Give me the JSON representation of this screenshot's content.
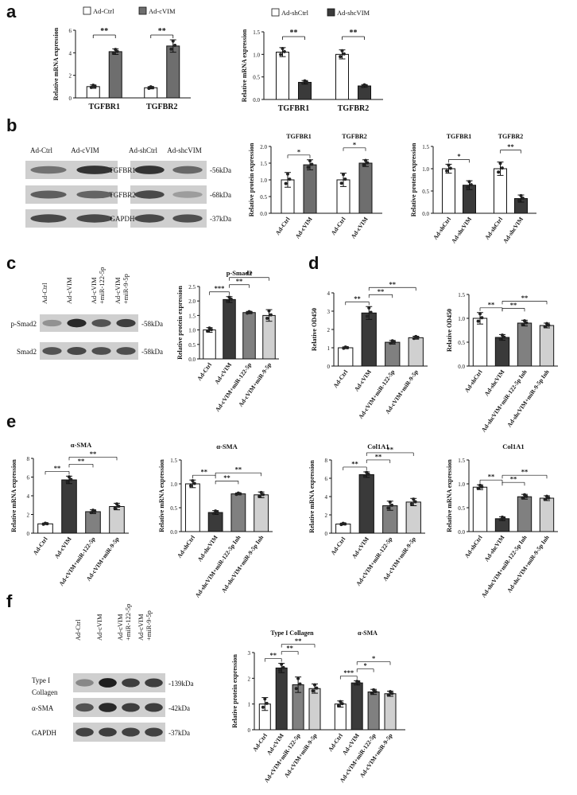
{
  "panels": {
    "a": "a",
    "b": "b",
    "c": "c",
    "d": "d",
    "e": "e",
    "f": "f"
  },
  "blots": {
    "b_left": {
      "lanes": [
        "Ad-Ctrl",
        "Ad-cVIM"
      ],
      "rows": [
        "TGFBR1",
        "TGFBR2",
        "GAPDH"
      ],
      "intensity": [
        [
          0.55,
          0.85
        ],
        [
          0.65,
          0.62
        ],
        [
          0.75,
          0.75
        ]
      ]
    },
    "b_right": {
      "lanes": [
        "Ad-shCtrl",
        "Ad-shcVIM"
      ],
      "rows": [
        "-56kDa",
        "-68kDa",
        "-37kDa"
      ],
      "intensity": [
        [
          0.85,
          0.6
        ],
        [
          0.75,
          0.35
        ],
        [
          0.75,
          0.72
        ]
      ]
    },
    "c": {
      "lanes": [
        "Ad-Ctrl",
        "Ad-cVIM",
        "Ad-cVIM +miR-122-5p",
        "Ad-cVIM +miR-9-5p"
      ],
      "rows": [
        "p-Smad2",
        "Smad2"
      ],
      "sizes": [
        "-58kDa",
        "-58kDa"
      ],
      "intensity": [
        [
          0.4,
          0.9,
          0.7,
          0.8
        ],
        [
          0.7,
          0.75,
          0.72,
          0.72
        ]
      ]
    },
    "f": {
      "lanes": [
        "Ad-Ctrl",
        "Ad-cVIM",
        "Ad-cVIM +miR-122-5p",
        "Ad-cVIM +miR-9-5p"
      ],
      "rows": [
        "Type I Collagen",
        "α-SMA",
        "GAPDH"
      ],
      "sizes": [
        "-139kDa",
        "-42kDa",
        "-37kDa"
      ],
      "intensity": [
        [
          0.45,
          0.95,
          0.8,
          0.8
        ],
        [
          0.7,
          0.9,
          0.8,
          0.8
        ],
        [
          0.78,
          0.8,
          0.78,
          0.78
        ]
      ]
    }
  },
  "chart_data": [
    {
      "id": "a1",
      "type": "bar",
      "ylabel": "Relative mRNA expression",
      "ylim": [
        0,
        6
      ],
      "yticks": [
        0,
        2,
        4,
        6
      ],
      "categories": [
        "TGFBR1",
        "TGFBR2"
      ],
      "series": [
        {
          "name": "Ad-Ctrl",
          "color": "#ffffff",
          "values": [
            1.0,
            0.9
          ],
          "err": [
            0.15,
            0.1
          ]
        },
        {
          "name": "Ad-cVIM",
          "color": "#6e6e6e",
          "values": [
            4.1,
            4.6
          ],
          "err": [
            0.25,
            0.55
          ]
        }
      ],
      "sig": [
        "**",
        "**"
      ],
      "legend": "top"
    },
    {
      "id": "a2",
      "type": "bar",
      "ylabel": "Relative mRNA expression",
      "ylim": [
        0,
        1.5
      ],
      "yticks": [
        0,
        0.5,
        1.0,
        1.5
      ],
      "ytick_labels": [
        "0.0",
        "0.5",
        "1.0",
        "1.5"
      ],
      "categories": [
        "TGFBR1",
        "TGFBR2"
      ],
      "series": [
        {
          "name": "Ad-shCtrl",
          "color": "#ffffff",
          "values": [
            1.05,
            1.0
          ],
          "err": [
            0.1,
            0.1
          ]
        },
        {
          "name": "Ad-shcVIM",
          "color": "#3a3a3a",
          "values": [
            0.38,
            0.3
          ],
          "err": [
            0.04,
            0.03
          ]
        }
      ],
      "sig": [
        "**",
        "**"
      ],
      "legend": "top"
    },
    {
      "id": "b1",
      "type": "bar",
      "ylabel": "Relative protein expression",
      "ylim": [
        0,
        2
      ],
      "yticks": [
        0,
        0.5,
        1.0,
        1.5,
        2.0
      ],
      "ytick_labels": [
        "0.0",
        "0.5",
        "1.0",
        "1.5",
        "2.0"
      ],
      "groups": [
        "TGFBR1",
        "TGFBR2"
      ],
      "xlabels": [
        "Ad-Ctrl",
        "Ad-cVIM",
        "Ad-Ctrl",
        "Ad-cVIM"
      ],
      "values": [
        1.0,
        1.45,
        1.0,
        1.5
      ],
      "err": [
        0.22,
        0.15,
        0.2,
        0.1
      ],
      "colors": [
        "#ffffff",
        "#6e6e6e",
        "#ffffff",
        "#6e6e6e"
      ],
      "sig": [
        {
          "from": 0,
          "to": 1,
          "label": "*"
        },
        {
          "from": 2,
          "to": 3,
          "label": "*"
        }
      ]
    },
    {
      "id": "b2",
      "type": "bar",
      "ylabel": "Relative protein expression",
      "ylim": [
        0,
        1.5
      ],
      "yticks": [
        0,
        0.5,
        1.0,
        1.5
      ],
      "ytick_labels": [
        "0.0",
        "0.5",
        "1.0",
        "1.5"
      ],
      "groups": [
        "TGFBR1",
        "TGFBR2"
      ],
      "xlabels": [
        "Ad-shCtrl",
        "Ad-shcVIM",
        "Ad-shCtrl",
        "Ad-shcVIM"
      ],
      "values": [
        1.0,
        0.63,
        1.0,
        0.33
      ],
      "err": [
        0.1,
        0.1,
        0.15,
        0.08
      ],
      "colors": [
        "#ffffff",
        "#3a3a3a",
        "#ffffff",
        "#3a3a3a"
      ],
      "sig": [
        {
          "from": 0,
          "to": 1,
          "label": "*"
        },
        {
          "from": 2,
          "to": 3,
          "label": "**"
        }
      ]
    },
    {
      "id": "c1",
      "type": "bar",
      "title": "p-Smad2",
      "ylabel": "Relative protein expression",
      "ylim": [
        0,
        2.5
      ],
      "yticks": [
        0,
        0.5,
        1.0,
        1.5,
        2.0,
        2.5
      ],
      "ytick_labels": [
        "0.0",
        "0.5",
        "1.0",
        "1.5",
        "2.0",
        "2.5"
      ],
      "xlabels": [
        "Ad-Ctrl",
        "Ad-cVIM",
        "Ad-cVIM+miR-122-5p",
        "Ad-cVIM+miR-9-5p"
      ],
      "values": [
        1.0,
        2.05,
        1.6,
        1.5
      ],
      "err": [
        0.08,
        0.1,
        0.04,
        0.2
      ],
      "colors": [
        "#ffffff",
        "#3a3a3a",
        "#808080",
        "#d0d0d0"
      ],
      "sig": [
        {
          "from": 0,
          "to": 1,
          "label": "***"
        },
        {
          "from": 1,
          "to": 2,
          "label": "**"
        },
        {
          "from": 1,
          "to": 3,
          "label": "**"
        }
      ]
    },
    {
      "id": "d1",
      "type": "bar",
      "ylabel": "Relative OD450",
      "ylim": [
        0,
        4
      ],
      "yticks": [
        0,
        1,
        2,
        3,
        4
      ],
      "xlabels": [
        "Ad-Ctrl",
        "Ad-cVIM",
        "Ad-cVIM+miR-122-5p",
        "Ad-cVIM+miR-9-5p"
      ],
      "values": [
        1.0,
        2.9,
        1.3,
        1.55
      ],
      "err": [
        0.05,
        0.35,
        0.1,
        0.08
      ],
      "colors": [
        "#ffffff",
        "#3a3a3a",
        "#808080",
        "#d0d0d0"
      ],
      "sig": [
        {
          "from": 0,
          "to": 1,
          "label": "**"
        },
        {
          "from": 1,
          "to": 2,
          "label": "**"
        },
        {
          "from": 1,
          "to": 3,
          "label": "**"
        }
      ]
    },
    {
      "id": "d2",
      "type": "bar",
      "ylabel": "Relative OD450",
      "ylim": [
        0,
        1.5
      ],
      "yticks": [
        0,
        0.5,
        1.0,
        1.5
      ],
      "ytick_labels": [
        "0.0",
        "0.5",
        "1.0",
        "1.5"
      ],
      "xlabels": [
        "Ad-shCtrl",
        "Ad-shcVIM",
        "Ad-shcVIM+miR-122-5p Inh",
        "Ad-shcVIM+miR-9-5p Inh"
      ],
      "values": [
        1.0,
        0.6,
        0.9,
        0.85
      ],
      "err": [
        0.12,
        0.06,
        0.06,
        0.05
      ],
      "colors": [
        "#ffffff",
        "#3a3a3a",
        "#808080",
        "#d0d0d0"
      ],
      "sig": [
        {
          "from": 0,
          "to": 1,
          "label": "**"
        },
        {
          "from": 1,
          "to": 2,
          "label": "**"
        },
        {
          "from": 1,
          "to": 3,
          "label": "**"
        }
      ]
    },
    {
      "id": "e1",
      "type": "bar",
      "title": "α-SMA",
      "ylabel": "Relative mRNA expression",
      "ylim": [
        0,
        8
      ],
      "yticks": [
        0,
        2,
        4,
        6,
        8
      ],
      "xlabels": [
        "Ad-Ctrl",
        "Ad-cVIM",
        "Ad-cVIM+miR-122-5p",
        "Ad-cVIM+miR-9-5p"
      ],
      "values": [
        1.0,
        5.7,
        2.3,
        2.85
      ],
      "err": [
        0.08,
        0.4,
        0.2,
        0.35
      ],
      "colors": [
        "#ffffff",
        "#3a3a3a",
        "#808080",
        "#d0d0d0"
      ],
      "sig": [
        {
          "from": 0,
          "to": 1,
          "label": "**"
        },
        {
          "from": 1,
          "to": 2,
          "label": "**"
        },
        {
          "from": 1,
          "to": 3,
          "label": "**"
        }
      ]
    },
    {
      "id": "e2",
      "type": "bar",
      "title": "α-SMA",
      "ylabel": "Relative mRNA expression",
      "ylim": [
        0,
        1.5
      ],
      "yticks": [
        0,
        0.5,
        1.0,
        1.5
      ],
      "ytick_labels": [
        "0.0",
        "0.5",
        "1.0",
        "1.5"
      ],
      "xlabels": [
        "Ad-shCtrl",
        "Ad-shcVIM",
        "Ad-shcVIM+miR-122-5p Inh",
        "Ad-shcVIM+miR-9-5p Inh"
      ],
      "values": [
        1.0,
        0.4,
        0.79,
        0.77
      ],
      "err": [
        0.08,
        0.04,
        0.02,
        0.06
      ],
      "colors": [
        "#ffffff",
        "#3a3a3a",
        "#808080",
        "#d0d0d0"
      ],
      "sig": [
        {
          "from": 0,
          "to": 1,
          "label": "**"
        },
        {
          "from": 1,
          "to": 2,
          "label": "**"
        },
        {
          "from": 1,
          "to": 3,
          "label": "**"
        }
      ]
    },
    {
      "id": "e3",
      "type": "bar",
      "title": "Col1A1",
      "ylabel": "Relative mRNA expression",
      "ylim": [
        0,
        8
      ],
      "yticks": [
        0,
        2,
        4,
        6,
        8
      ],
      "xlabels": [
        "Ad-Ctrl",
        "Ad-cVIM",
        "Ad-cVIM+miR-122-5p",
        "Ad-cVIM+miR-9-5p"
      ],
      "values": [
        1.0,
        6.4,
        3.0,
        3.4
      ],
      "err": [
        0.1,
        0.3,
        0.5,
        0.4
      ],
      "colors": [
        "#ffffff",
        "#3a3a3a",
        "#808080",
        "#d0d0d0"
      ],
      "sig": [
        {
          "from": 0,
          "to": 1,
          "label": "**"
        },
        {
          "from": 1,
          "to": 2,
          "label": "**"
        },
        {
          "from": 1,
          "to": 3,
          "label": "**"
        }
      ]
    },
    {
      "id": "e4",
      "type": "bar",
      "title": "Col1A1",
      "ylabel": "Relative mRNA expression",
      "ylim": [
        0,
        1.5
      ],
      "yticks": [
        0,
        0.5,
        1.0,
        1.5
      ],
      "ytick_labels": [
        "0.0",
        "0.5",
        "1.0",
        "1.5"
      ],
      "xlabels": [
        "Ad-shCtrl",
        "Ad-shcVIM",
        "Ad-shcVIM+miR-122-5p Inh",
        "Ad-shcVIM+miR-9-5p Inh"
      ],
      "values": [
        0.93,
        0.27,
        0.73,
        0.7
      ],
      "err": [
        0.05,
        0.04,
        0.05,
        0.05
      ],
      "colors": [
        "#ffffff",
        "#3a3a3a",
        "#808080",
        "#d0d0d0"
      ],
      "sig": [
        {
          "from": 0,
          "to": 1,
          "label": "**"
        },
        {
          "from": 1,
          "to": 2,
          "label": "**"
        },
        {
          "from": 1,
          "to": 3,
          "label": "**"
        }
      ]
    },
    {
      "id": "f1",
      "type": "bar",
      "ylabel": "Relative protein expression",
      "ylim": [
        0,
        3
      ],
      "yticks": [
        0,
        1,
        2,
        3
      ],
      "groups": [
        "Type I Collagen",
        "α-SMA"
      ],
      "xlabels": [
        "Ad-Ctrl",
        "Ad-cVIM",
        "Ad-cVIM+miR-122-5p",
        "Ad-cVIM+miR-9-5p",
        "Ad-Ctrl",
        "Ad-cVIM",
        "Ad-cVIM+miR-122-5p",
        "Ad-cVIM+miR-9-5p"
      ],
      "values": [
        1.0,
        2.4,
        1.75,
        1.6,
        1.0,
        1.82,
        1.47,
        1.4
      ],
      "err": [
        0.25,
        0.18,
        0.3,
        0.18,
        0.12,
        0.08,
        0.1,
        0.1
      ],
      "colors": [
        "#ffffff",
        "#3a3a3a",
        "#808080",
        "#d0d0d0",
        "#ffffff",
        "#3a3a3a",
        "#808080",
        "#d0d0d0"
      ],
      "sig": [
        {
          "from": 0,
          "to": 1,
          "label": "**"
        },
        {
          "from": 1,
          "to": 2,
          "label": "**"
        },
        {
          "from": 1,
          "to": 3,
          "label": "**"
        },
        {
          "from": 4,
          "to": 5,
          "label": "***"
        },
        {
          "from": 5,
          "to": 6,
          "label": "*"
        },
        {
          "from": 5,
          "to": 7,
          "label": "*"
        }
      ]
    }
  ]
}
